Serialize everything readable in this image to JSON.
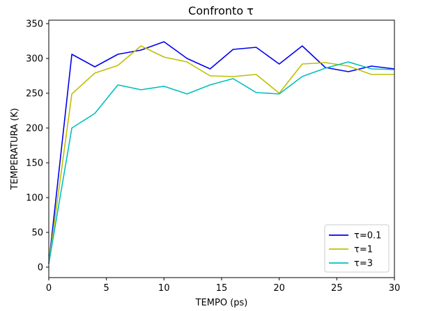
{
  "chart_data": {
    "type": "line",
    "title": "Confronto τ",
    "xlabel": "TEMPO (ps)",
    "ylabel": "TEMPERATURA (K)",
    "xlim": [
      0,
      30
    ],
    "ylim": [
      -15,
      355
    ],
    "xticks": [
      0,
      5,
      10,
      15,
      20,
      25,
      30
    ],
    "yticks": [
      0,
      50,
      100,
      150,
      200,
      250,
      300,
      350
    ],
    "grid": false,
    "legend_position": "lower-right",
    "x": [
      0,
      2,
      4,
      6,
      8,
      10,
      12,
      14,
      16,
      18,
      20,
      22,
      24,
      26,
      28,
      30
    ],
    "series": [
      {
        "name": "τ=0.1",
        "color": "#0000ee",
        "values": [
          5,
          306,
          288,
          306,
          312,
          324,
          300,
          285,
          313,
          316,
          292,
          318,
          287,
          281,
          289,
          285
        ]
      },
      {
        "name": "τ=1",
        "color": "#bfbf00",
        "values": [
          5,
          249,
          279,
          290,
          318,
          302,
          295,
          275,
          274,
          277,
          250,
          292,
          294,
          289,
          277,
          277
        ]
      },
      {
        "name": "τ=3",
        "color": "#00bfbf",
        "values": [
          5,
          200,
          221,
          262,
          255,
          260,
          249,
          262,
          271,
          251,
          249,
          274,
          286,
          295,
          285,
          284
        ]
      }
    ]
  }
}
